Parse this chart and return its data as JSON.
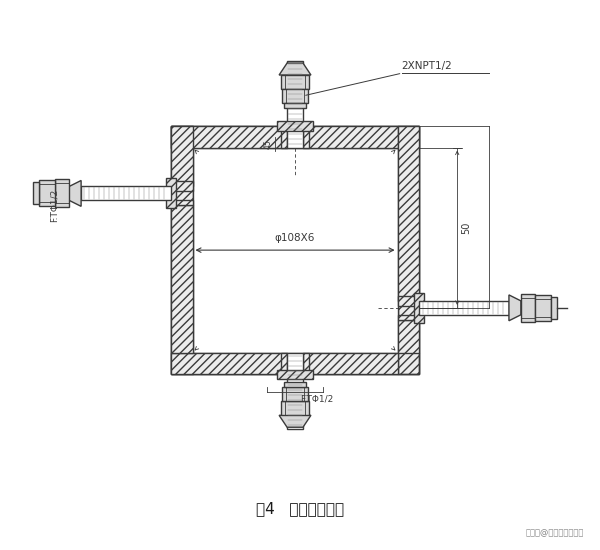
{
  "title": "图4   冷凝罐示意图",
  "watermark": "搜狐号@嬴可自动化仪表",
  "label_2xnpt": "2XNPT1/2",
  "label_phi": "φ108X6",
  "label_ftphi_bottom": "F.TΦ1/2",
  "label_ftphi_left": "F.TΦ1/2",
  "label_50": "50",
  "line_color": "#3a3a3a",
  "hatch_color": "#555555",
  "fig_width": 6.0,
  "fig_height": 5.5,
  "dpi": 100
}
